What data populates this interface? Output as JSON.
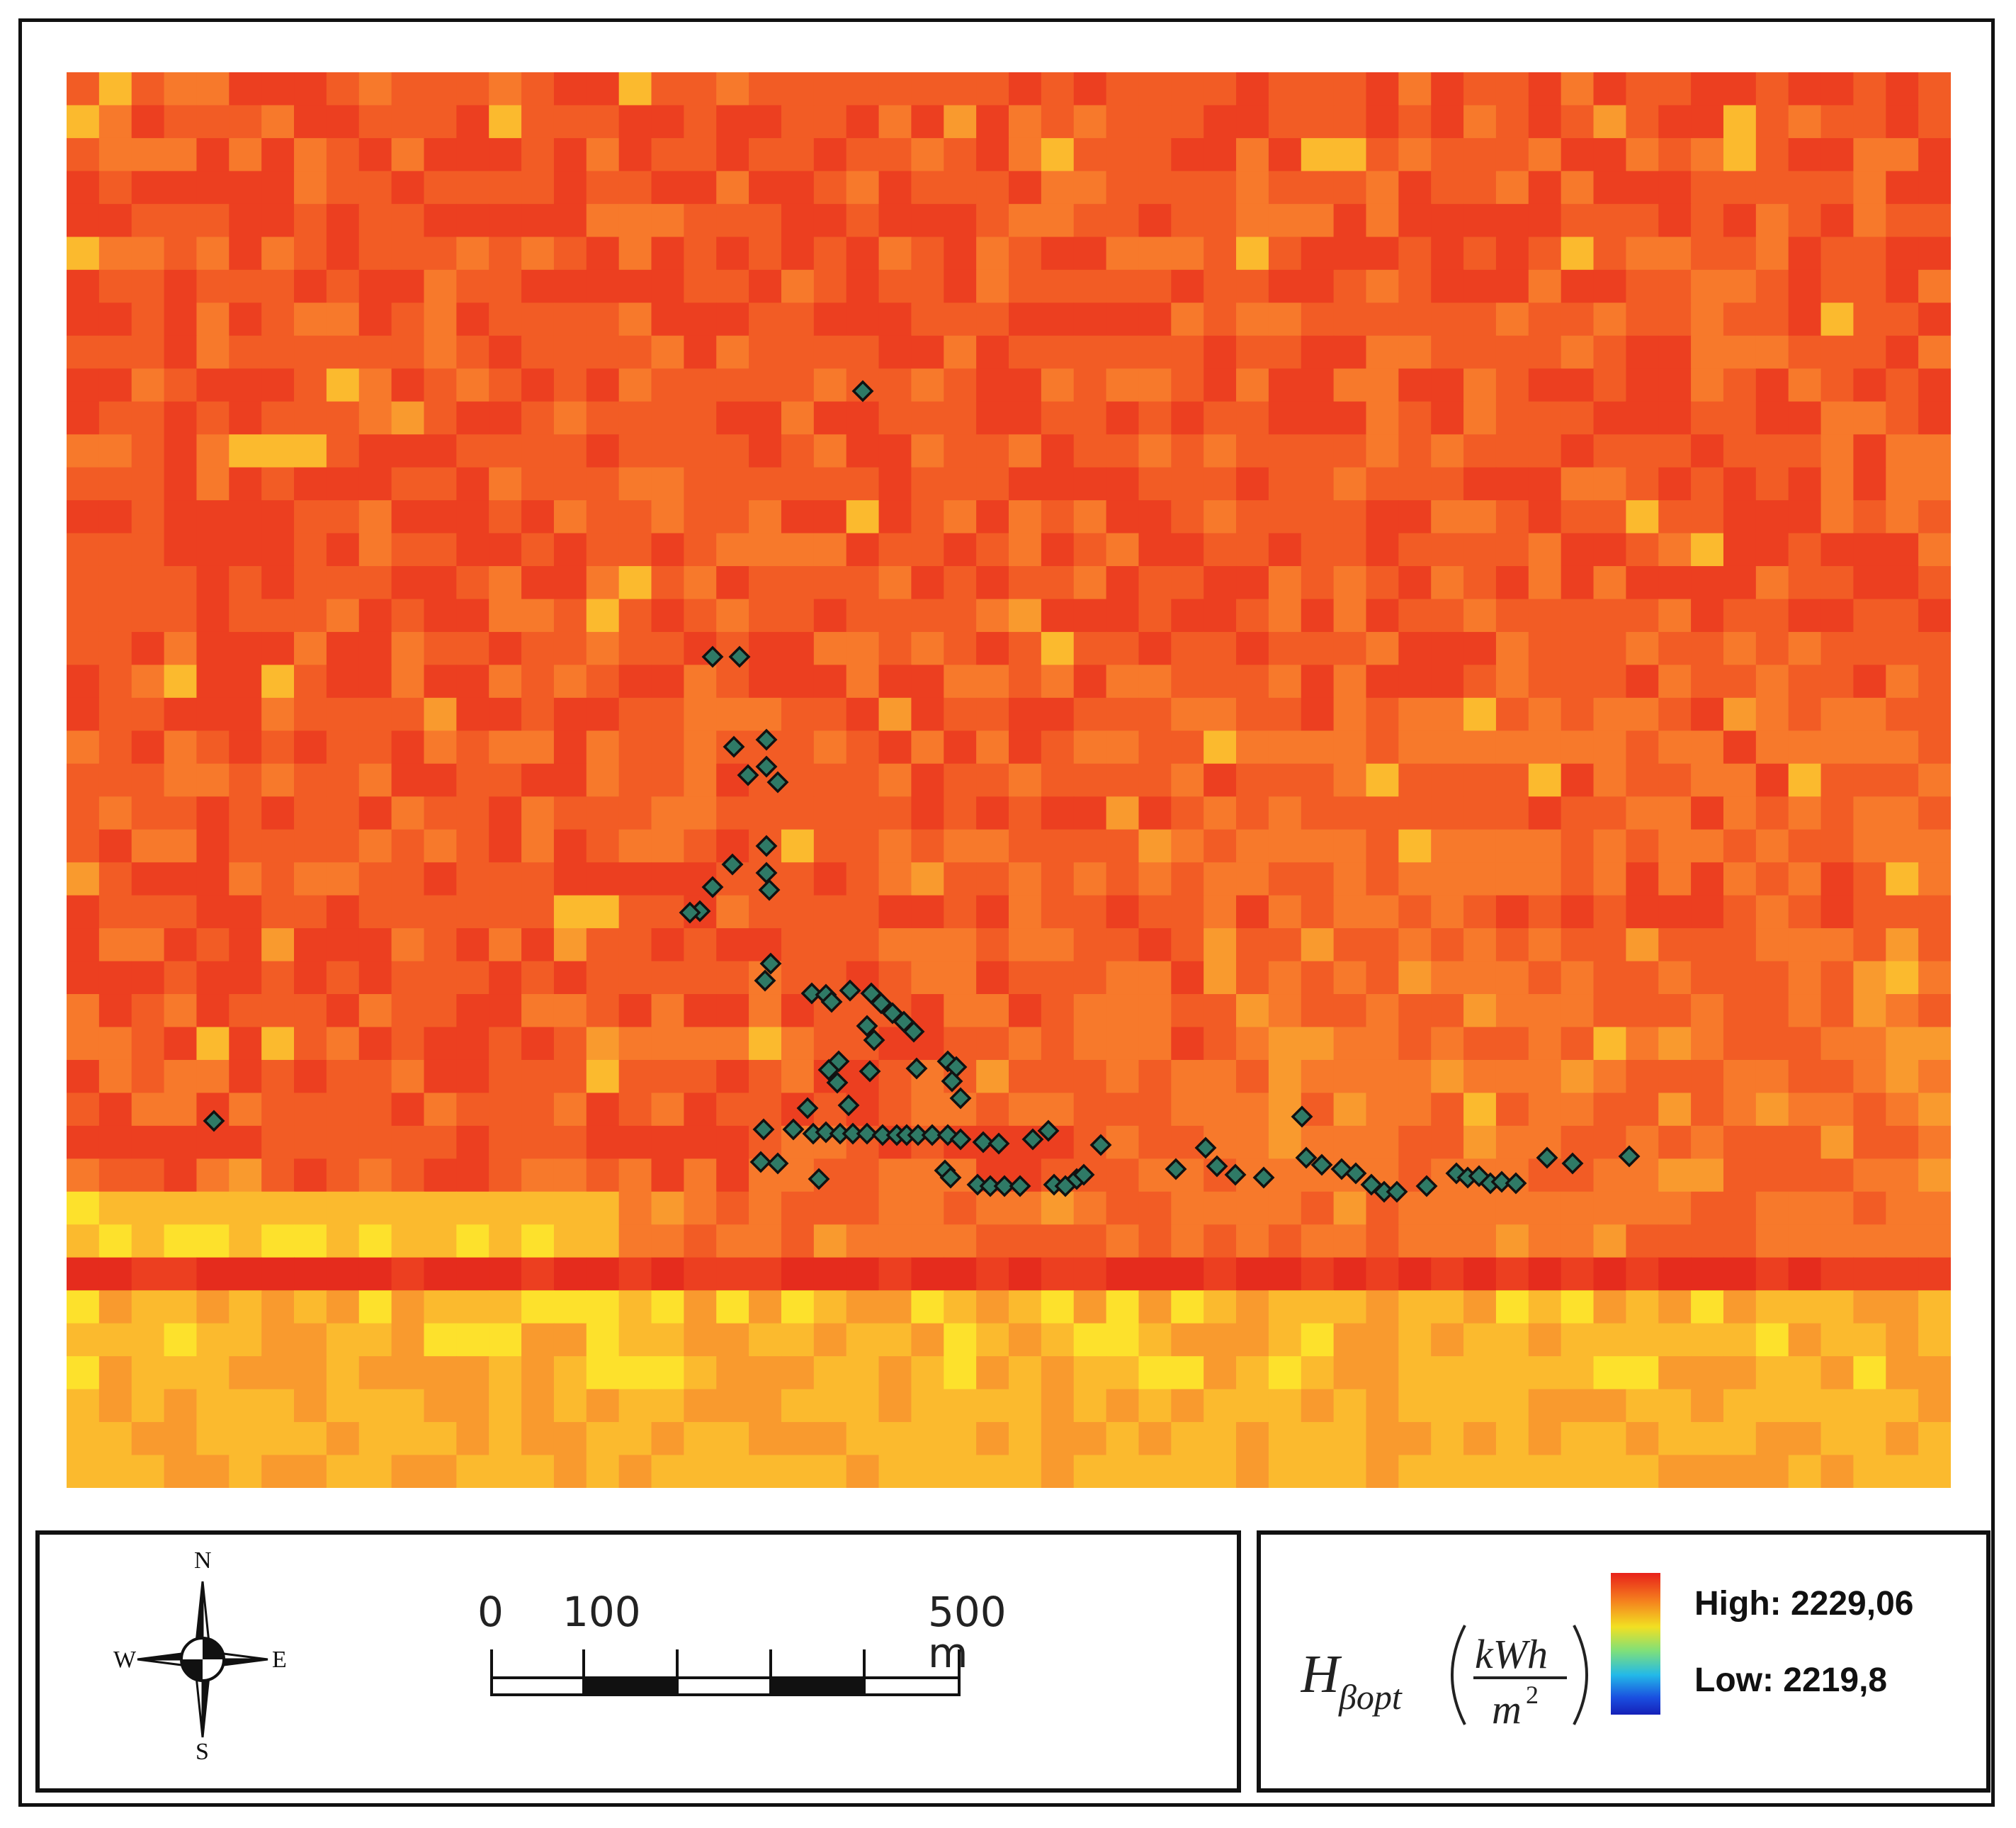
{
  "map": {
    "raster": {
      "cols": 58,
      "rows": 43,
      "colors": [
        "#e52c1d",
        "#ec3f20",
        "#f25c25",
        "#f7792b",
        "#f99a2e",
        "#fbba2e",
        "#fde12c"
      ]
    },
    "points_label": "",
    "points_color": "#2f7a66"
  },
  "legend": {
    "variable_symbol": "H",
    "variable_subscript": "βopt",
    "unit_numerator": "kWh",
    "unit_denominator": "m",
    "unit_exponent": "2",
    "high_label": "High: 2229,06",
    "low_label": "Low: 2219,8",
    "colorbar_colors": [
      "#e8211a",
      "#f5821e",
      "#f2e022",
      "#7fe07a",
      "#23b9e8",
      "#1a4fe0",
      "#1520b8"
    ]
  },
  "compass": {
    "north": "N",
    "south": "S",
    "east": "E",
    "west": "W"
  },
  "scalebar": {
    "tick_labels": [
      "0",
      "100",
      "500 m"
    ]
  }
}
